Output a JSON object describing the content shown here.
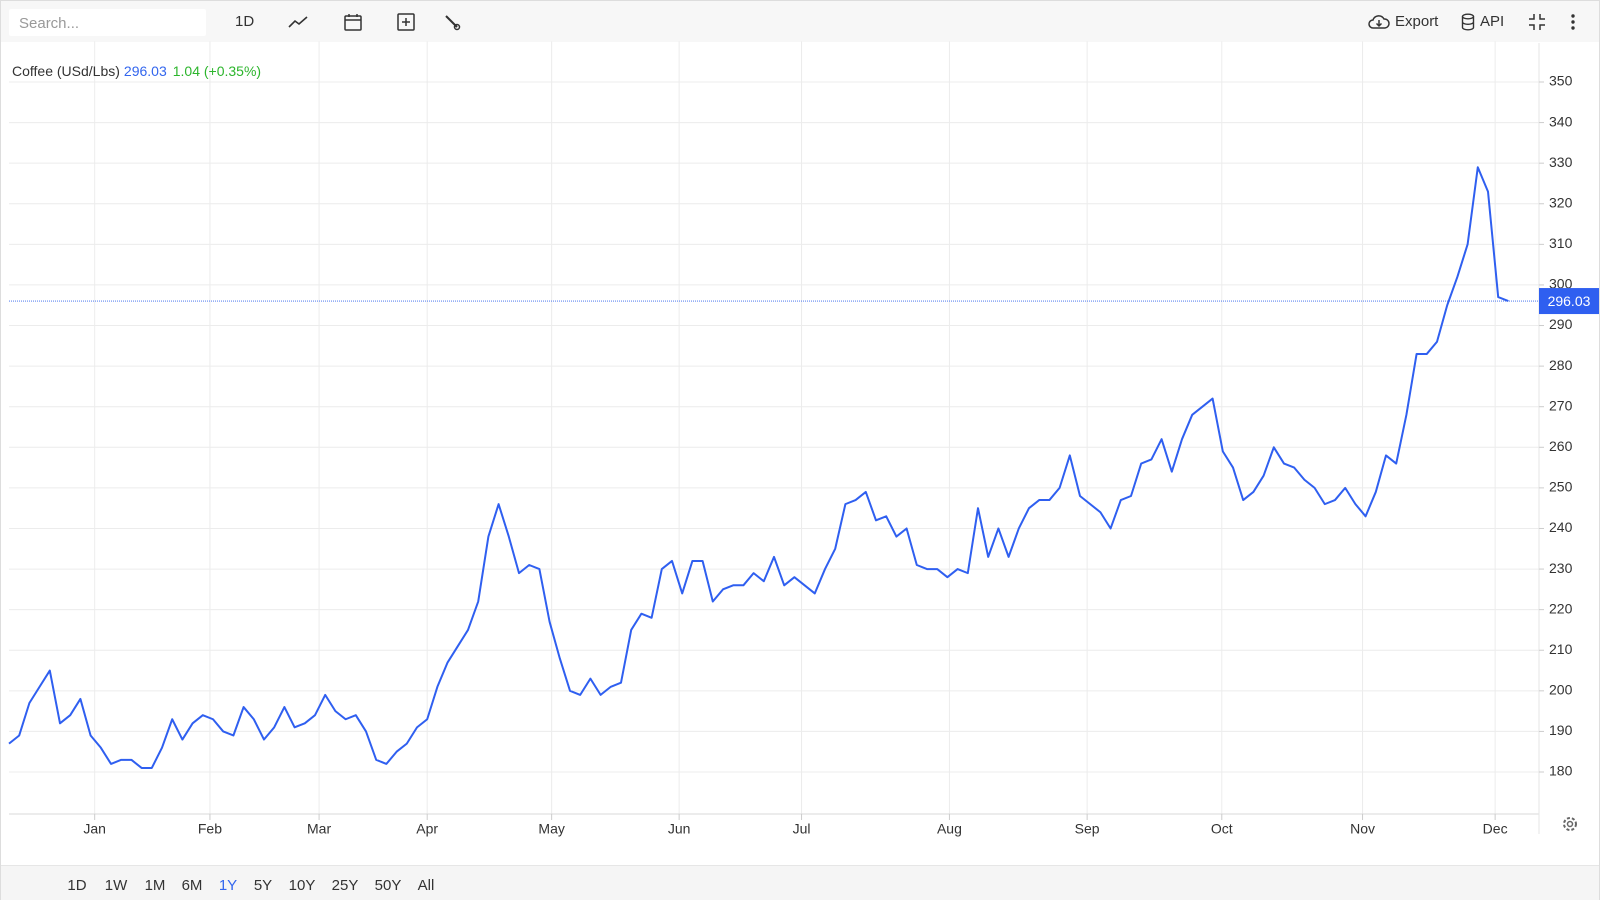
{
  "toolbar": {
    "search_placeholder": "Search...",
    "interval": "1D",
    "export": "Export",
    "api": "API"
  },
  "ranges": [
    {
      "label": "1D"
    },
    {
      "label": "1W"
    },
    {
      "label": "1M"
    },
    {
      "label": "6M"
    },
    {
      "label": "1Y",
      "selected": true
    },
    {
      "label": "5Y"
    },
    {
      "label": "10Y"
    },
    {
      "label": "25Y"
    },
    {
      "label": "50Y"
    },
    {
      "label": "All"
    }
  ],
  "chart_data": {
    "type": "line",
    "title": "Coffee (USd/Lbs)",
    "last_value": 296.03,
    "change": 1.04,
    "change_percent": {
      "value": 0.35,
      "label": "(+0.35%)"
    },
    "color": "#2f5ff0",
    "grid": true,
    "values": [
      187,
      189,
      197,
      201,
      205,
      192,
      194,
      198,
      189,
      186,
      182,
      183,
      183,
      181,
      181,
      186,
      193,
      188,
      192,
      194,
      193,
      190,
      189,
      196,
      193,
      188,
      191,
      196,
      191,
      192,
      194,
      199,
      195,
      193,
      194,
      190,
      183,
      182,
      185,
      187,
      191,
      193,
      201,
      207,
      211,
      215,
      222,
      238,
      246,
      238,
      229,
      231,
      230,
      217,
      208,
      200,
      199,
      203,
      199,
      201,
      202,
      215,
      219,
      218,
      230,
      232,
      224,
      232,
      232,
      222,
      225,
      226,
      226,
      229,
      227,
      233,
      226,
      228,
      226,
      224,
      230,
      235,
      246,
      247,
      249,
      242,
      243,
      238,
      240,
      231,
      230,
      230,
      228,
      230,
      229,
      245,
      233,
      240,
      233,
      240,
      245,
      247,
      247,
      250,
      258,
      248,
      246,
      244,
      240,
      247,
      248,
      256,
      257,
      262,
      254,
      262,
      268,
      270,
      272,
      259,
      255,
      247,
      249,
      253,
      260,
      256,
      255,
      252,
      250,
      246,
      247,
      250,
      246,
      243,
      249,
      258,
      256,
      268,
      283,
      283,
      286,
      295,
      302,
      310,
      329,
      323,
      297,
      296.03
    ],
    "xlim": [
      0,
      150
    ],
    "xticks": [
      {
        "value": 8.4,
        "label": "Jan"
      },
      {
        "value": 19.7,
        "label": "Feb"
      },
      {
        "value": 30.4,
        "label": "Mar"
      },
      {
        "value": 41,
        "label": "Apr"
      },
      {
        "value": 53.2,
        "label": "May"
      },
      {
        "value": 65.7,
        "label": "Jun"
      },
      {
        "value": 77.7,
        "label": "Jul"
      },
      {
        "value": 92.2,
        "label": "Aug"
      },
      {
        "value": 105.7,
        "label": "Sep"
      },
      {
        "value": 118.9,
        "label": "Oct"
      },
      {
        "value": 132.7,
        "label": "Nov"
      },
      {
        "value": 145.7,
        "label": "Dec"
      }
    ],
    "ylim": [
      170,
      360
    ],
    "yticks": [
      180,
      190,
      200,
      210,
      220,
      230,
      240,
      250,
      260,
      270,
      280,
      290,
      300,
      310,
      320,
      330,
      340,
      350
    ]
  }
}
